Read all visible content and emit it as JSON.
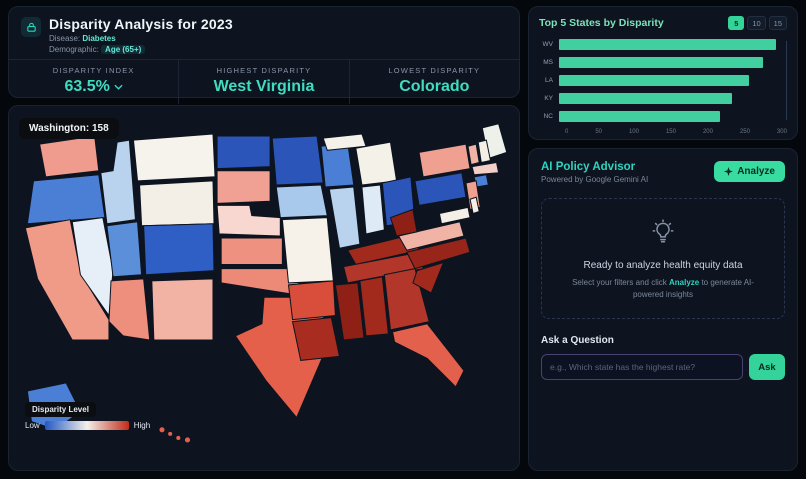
{
  "theme": {
    "accent": "#2dd4bf",
    "green_button": "#34d399",
    "bar_color": "#41cf9f",
    "card_bg": "#0d1420",
    "page_bg": "#04070c"
  },
  "header": {
    "title": "Disparity Analysis for 2023",
    "disease_label": "Disease:",
    "disease_value": "Diabetes",
    "demo_label": "Demographic:",
    "demo_value": "Age (65+)",
    "stats": [
      {
        "label": "DISPARITY INDEX",
        "value": "63.5%"
      },
      {
        "label": "HIGHEST DISPARITY",
        "value": "West Virginia"
      },
      {
        "label": "LOWEST DISPARITY",
        "value": "Colorado"
      }
    ]
  },
  "map": {
    "tooltip": "Washington: 158",
    "legend": {
      "title": "Disparity Level",
      "low": "Low",
      "high": "High",
      "low_color": "#2457c5",
      "mid_color": "#f3efe9",
      "high_color": "#c22d1d"
    },
    "state_colors": {
      "WA": "#ef9b8d",
      "OR": "#4b7fd6",
      "CA": "#f09a88",
      "ID": "#b9d3ef",
      "MT": "#f6f3ec",
      "WY": "#f3efe7",
      "NV": "#e6eef7",
      "UT": "#5b8fd9",
      "CO": "#2f5fc4",
      "AZ": "#ee8e7c",
      "NM": "#f2b2a4",
      "ND": "#2b55b8",
      "SD": "#f0a193",
      "NE": "#f7d7cf",
      "KS": "#ee9181",
      "OK": "#ed8a77",
      "TX": "#e4604b",
      "MN": "#2b55b8",
      "IA": "#a9c9ec",
      "MO": "#f6f2e9",
      "AR": "#d94e3a",
      "LA": "#a82c1f",
      "WI": "#4b7fd6",
      "IL": "#b9d3ef",
      "IN": "#dfeaf7",
      "OH": "#2b55b8",
      "MI": "#f4f1e9",
      "KY": "#a12a1d",
      "TN": "#b2372a",
      "MS": "#8e2015",
      "AL": "#a12a1d",
      "GA": "#b2372a",
      "FL": "#e2604c",
      "SC": "#a12a1d",
      "NC": "#98251a",
      "VA": "#f0b3a5",
      "WV": "#8e2015",
      "PA": "#2b55b8",
      "NY": "#efa091",
      "ME": "#eef1ea",
      "VT": "#f0b3a5",
      "NH": "#f3efe7",
      "MA": "#f3cfc7",
      "CT": "#4b7fd6",
      "NJ": "#efa091",
      "MD": "#f3efe7",
      "DE": "#f3efe7",
      "AK": "#4b7fd6",
      "HI": "#e4604b"
    }
  },
  "chart_data": {
    "type": "bar",
    "orientation": "horizontal",
    "title": "Top 5 States by Disparity",
    "categories": [
      "WV",
      "MS",
      "LA",
      "KY",
      "NC"
    ],
    "values": [
      285,
      268,
      250,
      227,
      212
    ],
    "xlim": [
      0,
      300
    ],
    "xticks": [
      "0",
      "50",
      "100",
      "150",
      "200",
      "250",
      "300"
    ],
    "options": [
      "5",
      "10",
      "15"
    ],
    "selected_option": "5",
    "bar_color": "#41cf9f",
    "grid": "single-line-at-max",
    "legend_position": "none"
  },
  "ai": {
    "title": "AI Policy Advisor",
    "subtitle": "Powered by Google Gemini AI",
    "analyze_button": "Analyze",
    "ready_title": "Ready to analyze health equity data",
    "ready_hint_prefix": "Select your filters and click ",
    "ready_hint_highlight": "Analyze",
    "ready_hint_suffix": " to generate AI-powered insights",
    "ask_label": "Ask a Question",
    "ask_placeholder": "e.g., Which state has the highest rate?",
    "ask_button": "Ask"
  }
}
